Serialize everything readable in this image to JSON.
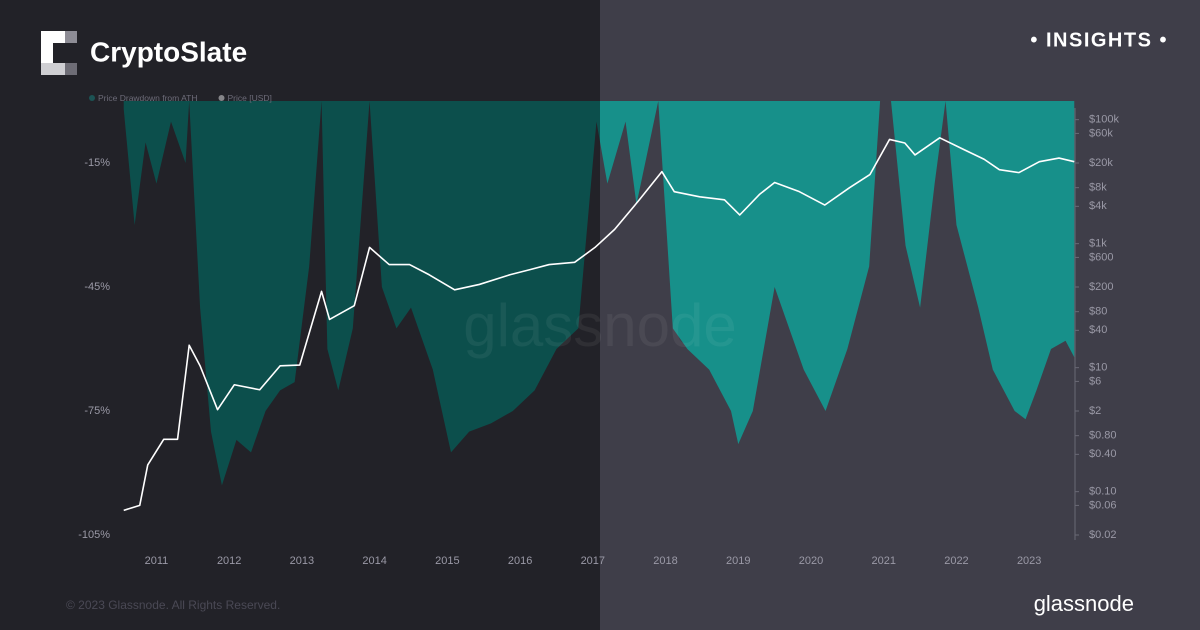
{
  "brand": "CryptoSlate",
  "section": "• INSIGHTS •",
  "copyright": "© 2023 Glassnode. All Rights Reserved.",
  "source": "glassnode",
  "chart_data": {
    "type": "area-line",
    "xlim": [
      2010.54,
      2023.63
    ],
    "xticks": [
      2011,
      2012,
      2013,
      2014,
      2015,
      2016,
      2017,
      2018,
      2019,
      2020,
      2021,
      2022,
      2023
    ],
    "ylim": [
      -105,
      0
    ],
    "yticks": [
      {
        "value": -15,
        "label": "-15%"
      },
      {
        "value": -45,
        "label": "-45%"
      },
      {
        "value": -75,
        "label": "-75%"
      },
      {
        "value": -105,
        "label": "-105%"
      }
    ],
    "y2lim": [
      0.02,
      200000
    ],
    "y2log": true,
    "y2ticks": [
      {
        "value": 100000,
        "label": "$100k"
      },
      {
        "value": 60000,
        "label": "$60k"
      },
      {
        "value": 20000,
        "label": "$20k"
      },
      {
        "value": 8000,
        "label": "$8k"
      },
      {
        "value": 4000,
        "label": "$4k"
      },
      {
        "value": 1000,
        "label": "$1k"
      },
      {
        "value": 600,
        "label": "$600"
      },
      {
        "value": 200,
        "label": "$200"
      },
      {
        "value": 80,
        "label": "$80"
      },
      {
        "value": 40,
        "label": "$40"
      },
      {
        "value": 10,
        "label": "$10"
      },
      {
        "value": 6,
        "label": "$6"
      },
      {
        "value": 2,
        "label": "$2"
      },
      {
        "value": 0.8,
        "label": "$0.80"
      },
      {
        "value": 0.4,
        "label": "$0.40"
      },
      {
        "value": 0.1,
        "label": "$0.10"
      },
      {
        "value": 0.06,
        "label": "$0.06"
      },
      {
        "value": 0.02,
        "label": "$0.02"
      }
    ],
    "grid": false,
    "series": [
      {
        "name": "Price Drawdown from ATH",
        "color": "#17908a",
        "kind": "area",
        "axis": "y",
        "x": [
          2010.55,
          2010.7,
          2010.85,
          2011.0,
          2011.2,
          2011.4,
          2011.45,
          2011.6,
          2011.75,
          2011.9,
          2012.1,
          2012.3,
          2012.5,
          2012.7,
          2012.9,
          2013.1,
          2013.27,
          2013.35,
          2013.5,
          2013.7,
          2013.93,
          2014.1,
          2014.3,
          2014.5,
          2014.8,
          2015.05,
          2015.3,
          2015.6,
          2015.9,
          2016.2,
          2016.5,
          2016.8,
          2017.05,
          2017.2,
          2017.45,
          2017.6,
          2017.9,
          2018.1,
          2018.3,
          2018.6,
          2018.9,
          2019.0,
          2019.2,
          2019.5,
          2019.7,
          2019.9,
          2020.2,
          2020.5,
          2020.8,
          2020.95,
          2021.1,
          2021.3,
          2021.5,
          2021.7,
          2021.85,
          2022.0,
          2022.3,
          2022.5,
          2022.8,
          2022.95,
          2023.1,
          2023.3,
          2023.5,
          2023.62
        ],
        "values": [
          -2,
          -30,
          -10,
          -20,
          -5,
          -15,
          0,
          -50,
          -80,
          -93,
          -82,
          -85,
          -75,
          -70,
          -68,
          -40,
          0,
          -60,
          -70,
          -55,
          0,
          -45,
          -55,
          -50,
          -65,
          -85,
          -80,
          -78,
          -75,
          -70,
          -60,
          -55,
          -5,
          -20,
          -5,
          -25,
          0,
          -55,
          -60,
          -65,
          -75,
          -83,
          -75,
          -45,
          -55,
          -65,
          -75,
          -60,
          -40,
          0,
          0,
          -35,
          -50,
          -20,
          0,
          -30,
          -50,
          -65,
          -75,
          -77,
          -70,
          -60,
          -58,
          -62
        ]
      },
      {
        "name": "Price [USD]",
        "color": "#ffffff",
        "kind": "line",
        "axis": "y2",
        "x": [
          2010.55,
          2010.77,
          2010.88,
          2011.1,
          2011.29,
          2011.45,
          2011.6,
          2011.84,
          2012.07,
          2012.42,
          2012.7,
          2012.97,
          2013.27,
          2013.38,
          2013.72,
          2013.93,
          2014.2,
          2014.48,
          2014.75,
          2015.1,
          2015.44,
          2015.86,
          2016.13,
          2016.4,
          2016.75,
          2017.03,
          2017.3,
          2017.64,
          2017.95,
          2018.12,
          2018.47,
          2018.81,
          2019.02,
          2019.29,
          2019.5,
          2019.84,
          2020.19,
          2020.53,
          2020.81,
          2021.08,
          2021.29,
          2021.43,
          2021.77,
          2022.1,
          2022.38,
          2022.59,
          2022.86,
          2023.14,
          2023.41,
          2023.62
        ],
        "values": [
          0.05,
          0.06,
          0.27,
          0.7,
          0.7,
          23,
          10.7,
          2.1,
          5.3,
          4.4,
          10.7,
          11,
          170,
          60,
          100,
          870,
          460,
          460,
          315,
          180,
          220,
          315,
          380,
          460,
          500,
          870,
          1700,
          5100,
          14500,
          6900,
          5700,
          5100,
          2900,
          6200,
          9700,
          6900,
          4200,
          8000,
          13000,
          48000,
          42000,
          27000,
          51000,
          33000,
          23000,
          15600,
          14000,
          21000,
          24000,
          21000
        ]
      }
    ]
  }
}
